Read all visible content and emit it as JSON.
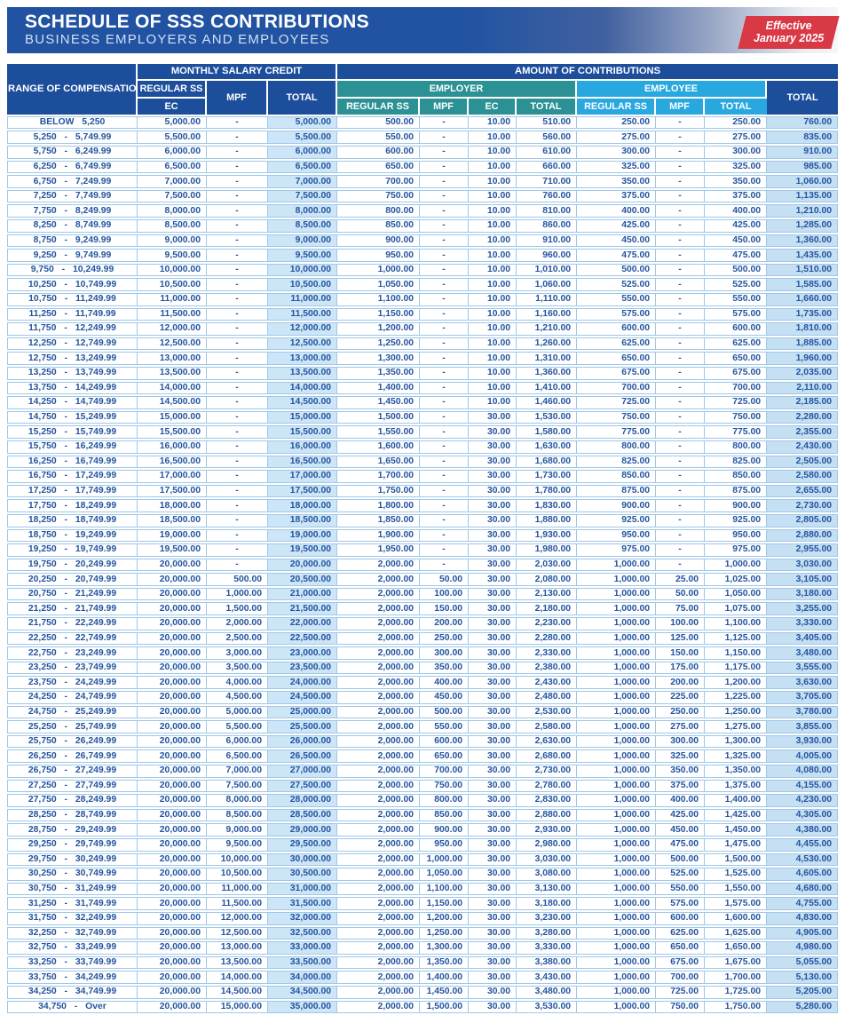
{
  "banner": {
    "title": "SCHEDULE OF SSS CONTRIBUTIONS",
    "subtitle": "BUSINESS EMPLOYERS AND EMPLOYEES",
    "badge_line1": "Effective",
    "badge_line2": "January 2025"
  },
  "colors": {
    "banner_blue": "#2153a2",
    "header_navy": "#1d4e9c",
    "employer_teal": "#2b9195",
    "employee_blue": "#29a8e0",
    "badge_red": "#d93845",
    "cell_text_blue": "#24549f",
    "border_blue": "#9ec7e8",
    "msc_total_bg": "#cde6f7",
    "grand_total_bg": "#c5dff3"
  },
  "table": {
    "headers": {
      "range": "RANGE OF COMPENSATION",
      "msc": "MONTHLY SALARY CREDIT",
      "contributions": "AMOUNT OF CONTRIBUTIONS",
      "regular_ss": "REGULAR SS",
      "ec": "EC",
      "mpf": "MPF",
      "total": "TOTAL",
      "employer": "EMPLOYER",
      "employee": "EMPLOYEE"
    },
    "columns": [
      "range",
      "msc-regular-ss-ec",
      "msc-mpf",
      "msc-total",
      "employer-regular-ss",
      "employer-mpf",
      "employer-ec",
      "employer-total",
      "employee-regular-ss",
      "employee-mpf",
      "employee-total",
      "grand-total"
    ],
    "rows": [
      [
        "BELOW 5,250",
        "5,000.00",
        "-",
        "5,000.00",
        "500.00",
        "-",
        "10.00",
        "510.00",
        "250.00",
        "-",
        "250.00",
        "760.00"
      ],
      [
        "5,250 - 5,749.99",
        "5,500.00",
        "-",
        "5,500.00",
        "550.00",
        "-",
        "10.00",
        "560.00",
        "275.00",
        "-",
        "275.00",
        "835.00"
      ],
      [
        "5,750 - 6,249.99",
        "6,000.00",
        "-",
        "6,000.00",
        "600.00",
        "-",
        "10.00",
        "610.00",
        "300.00",
        "-",
        "300.00",
        "910.00"
      ],
      [
        "6,250 - 6,749.99",
        "6,500.00",
        "-",
        "6,500.00",
        "650.00",
        "-",
        "10.00",
        "660.00",
        "325.00",
        "-",
        "325.00",
        "985.00"
      ],
      [
        "6,750 - 7,249.99",
        "7,000.00",
        "-",
        "7,000.00",
        "700.00",
        "-",
        "10.00",
        "710.00",
        "350.00",
        "-",
        "350.00",
        "1,060.00"
      ],
      [
        "7,250 - 7,749.99",
        "7,500.00",
        "-",
        "7,500.00",
        "750.00",
        "-",
        "10.00",
        "760.00",
        "375.00",
        "-",
        "375.00",
        "1,135.00"
      ],
      [
        "7,750 - 8,249.99",
        "8,000.00",
        "-",
        "8,000.00",
        "800.00",
        "-",
        "10.00",
        "810.00",
        "400.00",
        "-",
        "400.00",
        "1,210.00"
      ],
      [
        "8,250 - 8,749.99",
        "8,500.00",
        "-",
        "8,500.00",
        "850.00",
        "-",
        "10.00",
        "860.00",
        "425.00",
        "-",
        "425.00",
        "1,285.00"
      ],
      [
        "8,750 - 9,249.99",
        "9,000.00",
        "-",
        "9,000.00",
        "900.00",
        "-",
        "10.00",
        "910.00",
        "450.00",
        "-",
        "450.00",
        "1,360.00"
      ],
      [
        "9,250 - 9,749.99",
        "9,500.00",
        "-",
        "9,500.00",
        "950.00",
        "-",
        "10.00",
        "960.00",
        "475.00",
        "-",
        "475.00",
        "1,435.00"
      ],
      [
        "9,750 - 10,249.99",
        "10,000.00",
        "-",
        "10,000.00",
        "1,000.00",
        "-",
        "10.00",
        "1,010.00",
        "500.00",
        "-",
        "500.00",
        "1,510.00"
      ],
      [
        "10,250 - 10,749.99",
        "10,500.00",
        "-",
        "10,500.00",
        "1,050.00",
        "-",
        "10.00",
        "1,060.00",
        "525.00",
        "-",
        "525.00",
        "1,585.00"
      ],
      [
        "10,750 - 11,249.99",
        "11,000.00",
        "-",
        "11,000.00",
        "1,100.00",
        "-",
        "10.00",
        "1,110.00",
        "550.00",
        "-",
        "550.00",
        "1,660.00"
      ],
      [
        "11,250 - 11,749.99",
        "11,500.00",
        "-",
        "11,500.00",
        "1,150.00",
        "-",
        "10.00",
        "1,160.00",
        "575.00",
        "-",
        "575.00",
        "1,735.00"
      ],
      [
        "11,750 - 12,249.99",
        "12,000.00",
        "-",
        "12,000.00",
        "1,200.00",
        "-",
        "10.00",
        "1,210.00",
        "600.00",
        "-",
        "600.00",
        "1,810.00"
      ],
      [
        "12,250 - 12,749.99",
        "12,500.00",
        "-",
        "12,500.00",
        "1,250.00",
        "-",
        "10.00",
        "1,260.00",
        "625.00",
        "-",
        "625.00",
        "1,885.00"
      ],
      [
        "12,750 - 13,249.99",
        "13,000.00",
        "-",
        "13,000.00",
        "1,300.00",
        "-",
        "10.00",
        "1,310.00",
        "650.00",
        "-",
        "650.00",
        "1,960.00"
      ],
      [
        "13,250 - 13,749.99",
        "13,500.00",
        "-",
        "13,500.00",
        "1,350.00",
        "-",
        "10.00",
        "1,360.00",
        "675.00",
        "-",
        "675.00",
        "2,035.00"
      ],
      [
        "13,750 - 14,249.99",
        "14,000.00",
        "-",
        "14,000.00",
        "1,400.00",
        "-",
        "10.00",
        "1,410.00",
        "700.00",
        "-",
        "700.00",
        "2,110.00"
      ],
      [
        "14,250 - 14,749.99",
        "14,500.00",
        "-",
        "14,500.00",
        "1,450.00",
        "-",
        "10.00",
        "1,460.00",
        "725.00",
        "-",
        "725.00",
        "2,185.00"
      ],
      [
        "14,750 - 15,249.99",
        "15,000.00",
        "-",
        "15,000.00",
        "1,500.00",
        "-",
        "30.00",
        "1,530.00",
        "750.00",
        "-",
        "750.00",
        "2,280.00"
      ],
      [
        "15,250 - 15,749.99",
        "15,500.00",
        "-",
        "15,500.00",
        "1,550.00",
        "-",
        "30.00",
        "1,580.00",
        "775.00",
        "-",
        "775.00",
        "2,355.00"
      ],
      [
        "15,750 - 16,249.99",
        "16,000.00",
        "-",
        "16,000.00",
        "1,600.00",
        "-",
        "30.00",
        "1,630.00",
        "800.00",
        "-",
        "800.00",
        "2,430.00"
      ],
      [
        "16,250 - 16,749.99",
        "16,500.00",
        "-",
        "16,500.00",
        "1,650.00",
        "-",
        "30.00",
        "1,680.00",
        "825.00",
        "-",
        "825.00",
        "2,505.00"
      ],
      [
        "16,750 - 17,249.99",
        "17,000.00",
        "-",
        "17,000.00",
        "1,700.00",
        "-",
        "30.00",
        "1,730.00",
        "850.00",
        "-",
        "850.00",
        "2,580.00"
      ],
      [
        "17,250 - 17,749.99",
        "17,500.00",
        "-",
        "17,500.00",
        "1,750.00",
        "-",
        "30.00",
        "1,780.00",
        "875.00",
        "-",
        "875.00",
        "2,655.00"
      ],
      [
        "17,750 - 18,249.99",
        "18,000.00",
        "-",
        "18,000.00",
        "1,800.00",
        "-",
        "30.00",
        "1,830.00",
        "900.00",
        "-",
        "900.00",
        "2,730.00"
      ],
      [
        "18,250 - 18,749.99",
        "18,500.00",
        "-",
        "18,500.00",
        "1,850.00",
        "-",
        "30.00",
        "1,880.00",
        "925.00",
        "-",
        "925.00",
        "2,805.00"
      ],
      [
        "18,750 - 19,249.99",
        "19,000.00",
        "-",
        "19,000.00",
        "1,900.00",
        "-",
        "30.00",
        "1,930.00",
        "950.00",
        "-",
        "950.00",
        "2,880.00"
      ],
      [
        "19,250 - 19,749.99",
        "19,500.00",
        "-",
        "19,500.00",
        "1,950.00",
        "-",
        "30.00",
        "1,980.00",
        "975.00",
        "-",
        "975.00",
        "2,955.00"
      ],
      [
        "19,750 - 20,249.99",
        "20,000.00",
        "-",
        "20,000.00",
        "2,000.00",
        "-",
        "30.00",
        "2,030.00",
        "1,000.00",
        "-",
        "1,000.00",
        "3,030.00"
      ],
      [
        "20,250 - 20,749.99",
        "20,000.00",
        "500.00",
        "20,500.00",
        "2,000.00",
        "50.00",
        "30.00",
        "2,080.00",
        "1,000.00",
        "25.00",
        "1,025.00",
        "3,105.00"
      ],
      [
        "20,750 - 21,249.99",
        "20,000.00",
        "1,000.00",
        "21,000.00",
        "2,000.00",
        "100.00",
        "30.00",
        "2,130.00",
        "1,000.00",
        "50.00",
        "1,050.00",
        "3,180.00"
      ],
      [
        "21,250 - 21,749.99",
        "20,000.00",
        "1,500.00",
        "21,500.00",
        "2,000.00",
        "150.00",
        "30.00",
        "2,180.00",
        "1,000.00",
        "75.00",
        "1,075.00",
        "3,255.00"
      ],
      [
        "21,750 - 22,249.99",
        "20,000.00",
        "2,000.00",
        "22,000.00",
        "2,000.00",
        "200.00",
        "30.00",
        "2,230.00",
        "1,000.00",
        "100.00",
        "1,100.00",
        "3,330.00"
      ],
      [
        "22,250 - 22,749.99",
        "20,000.00",
        "2,500.00",
        "22,500.00",
        "2,000.00",
        "250.00",
        "30.00",
        "2,280.00",
        "1,000.00",
        "125.00",
        "1,125.00",
        "3,405.00"
      ],
      [
        "22,750 - 23,249.99",
        "20,000.00",
        "3,000.00",
        "23,000.00",
        "2,000.00",
        "300.00",
        "30.00",
        "2,330.00",
        "1,000.00",
        "150.00",
        "1,150.00",
        "3,480.00"
      ],
      [
        "23,250 - 23,749.99",
        "20,000.00",
        "3,500.00",
        "23,500.00",
        "2,000.00",
        "350.00",
        "30.00",
        "2,380.00",
        "1,000.00",
        "175.00",
        "1,175.00",
        "3,555.00"
      ],
      [
        "23,750 - 24,249.99",
        "20,000.00",
        "4,000.00",
        "24,000.00",
        "2,000.00",
        "400.00",
        "30.00",
        "2,430.00",
        "1,000.00",
        "200.00",
        "1,200.00",
        "3,630.00"
      ],
      [
        "24,250 - 24,749.99",
        "20,000.00",
        "4,500.00",
        "24,500.00",
        "2,000.00",
        "450.00",
        "30.00",
        "2,480.00",
        "1,000.00",
        "225.00",
        "1,225.00",
        "3,705.00"
      ],
      [
        "24,750 - 25,249.99",
        "20,000.00",
        "5,000.00",
        "25,000.00",
        "2,000.00",
        "500.00",
        "30.00",
        "2,530.00",
        "1,000.00",
        "250.00",
        "1,250.00",
        "3,780.00"
      ],
      [
        "25,250 - 25,749.99",
        "20,000.00",
        "5,500.00",
        "25,500.00",
        "2,000.00",
        "550.00",
        "30.00",
        "2,580.00",
        "1,000.00",
        "275.00",
        "1,275.00",
        "3,855.00"
      ],
      [
        "25,750 - 26,249.99",
        "20,000.00",
        "6,000.00",
        "26,000.00",
        "2,000.00",
        "600.00",
        "30.00",
        "2,630.00",
        "1,000.00",
        "300.00",
        "1,300.00",
        "3,930.00"
      ],
      [
        "26,250 - 26,749.99",
        "20,000.00",
        "6,500.00",
        "26,500.00",
        "2,000.00",
        "650.00",
        "30.00",
        "2,680.00",
        "1,000.00",
        "325.00",
        "1,325.00",
        "4,005.00"
      ],
      [
        "26,750 - 27,249.99",
        "20,000.00",
        "7,000.00",
        "27,000.00",
        "2,000.00",
        "700.00",
        "30.00",
        "2,730.00",
        "1,000.00",
        "350.00",
        "1,350.00",
        "4,080.00"
      ],
      [
        "27,250 - 27,749.99",
        "20,000.00",
        "7,500.00",
        "27,500.00",
        "2,000.00",
        "750.00",
        "30.00",
        "2,780.00",
        "1,000.00",
        "375.00",
        "1,375.00",
        "4,155.00"
      ],
      [
        "27,750 - 28,249.99",
        "20,000.00",
        "8,000.00",
        "28,000.00",
        "2,000.00",
        "800.00",
        "30.00",
        "2,830.00",
        "1,000.00",
        "400.00",
        "1,400.00",
        "4,230.00"
      ],
      [
        "28,250 - 28,749.99",
        "20,000.00",
        "8,500.00",
        "28,500.00",
        "2,000.00",
        "850.00",
        "30.00",
        "2,880.00",
        "1,000.00",
        "425.00",
        "1,425.00",
        "4,305.00"
      ],
      [
        "28,750 - 29,249.99",
        "20,000.00",
        "9,000.00",
        "29,000.00",
        "2,000.00",
        "900.00",
        "30.00",
        "2,930.00",
        "1,000.00",
        "450.00",
        "1,450.00",
        "4,380.00"
      ],
      [
        "29,250 - 29,749.99",
        "20,000.00",
        "9,500.00",
        "29,500.00",
        "2,000.00",
        "950.00",
        "30.00",
        "2,980.00",
        "1,000.00",
        "475.00",
        "1,475.00",
        "4,455.00"
      ],
      [
        "29,750 - 30,249.99",
        "20,000.00",
        "10,000.00",
        "30,000.00",
        "2,000.00",
        "1,000.00",
        "30.00",
        "3,030.00",
        "1,000.00",
        "500.00",
        "1,500.00",
        "4,530.00"
      ],
      [
        "30,250 - 30,749.99",
        "20,000.00",
        "10,500.00",
        "30,500.00",
        "2,000.00",
        "1,050.00",
        "30.00",
        "3,080.00",
        "1,000.00",
        "525.00",
        "1,525.00",
        "4,605.00"
      ],
      [
        "30,750 - 31,249.99",
        "20,000.00",
        "11,000.00",
        "31,000.00",
        "2,000.00",
        "1,100.00",
        "30.00",
        "3,130.00",
        "1,000.00",
        "550.00",
        "1,550.00",
        "4,680.00"
      ],
      [
        "31,250 - 31,749.99",
        "20,000.00",
        "11,500.00",
        "31,500.00",
        "2,000.00",
        "1,150.00",
        "30.00",
        "3,180.00",
        "1,000.00",
        "575.00",
        "1,575.00",
        "4,755.00"
      ],
      [
        "31,750 - 32,249.99",
        "20,000.00",
        "12,000.00",
        "32,000.00",
        "2,000.00",
        "1,200.00",
        "30.00",
        "3,230.00",
        "1,000.00",
        "600.00",
        "1,600.00",
        "4,830.00"
      ],
      [
        "32,250 - 32,749.99",
        "20,000.00",
        "12,500.00",
        "32,500.00",
        "2,000.00",
        "1,250.00",
        "30.00",
        "3,280.00",
        "1,000.00",
        "625.00",
        "1,625.00",
        "4,905.00"
      ],
      [
        "32,750 - 33,249.99",
        "20,000.00",
        "13,000.00",
        "33,000.00",
        "2,000.00",
        "1,300.00",
        "30.00",
        "3,330.00",
        "1,000.00",
        "650.00",
        "1,650.00",
        "4,980.00"
      ],
      [
        "33,250 - 33,749.99",
        "20,000.00",
        "13,500.00",
        "33,500.00",
        "2,000.00",
        "1,350.00",
        "30.00",
        "3,380.00",
        "1,000.00",
        "675.00",
        "1,675.00",
        "5,055.00"
      ],
      [
        "33,750 - 34,249.99",
        "20,000.00",
        "14,000.00",
        "34,000.00",
        "2,000.00",
        "1,400.00",
        "30.00",
        "3,430.00",
        "1,000.00",
        "700.00",
        "1,700.00",
        "5,130.00"
      ],
      [
        "34,250 - 34,749.99",
        "20,000.00",
        "14,500.00",
        "34,500.00",
        "2,000.00",
        "1,450.00",
        "30.00",
        "3,480.00",
        "1,000.00",
        "725.00",
        "1,725.00",
        "5,205.00"
      ],
      [
        "34,750 - Over",
        "20,000.00",
        "15,000.00",
        "35,000.00",
        "2,000.00",
        "1,500.00",
        "30.00",
        "3,530.00",
        "1,000.00",
        "750.00",
        "1,750.00",
        "5,280.00"
      ]
    ]
  }
}
